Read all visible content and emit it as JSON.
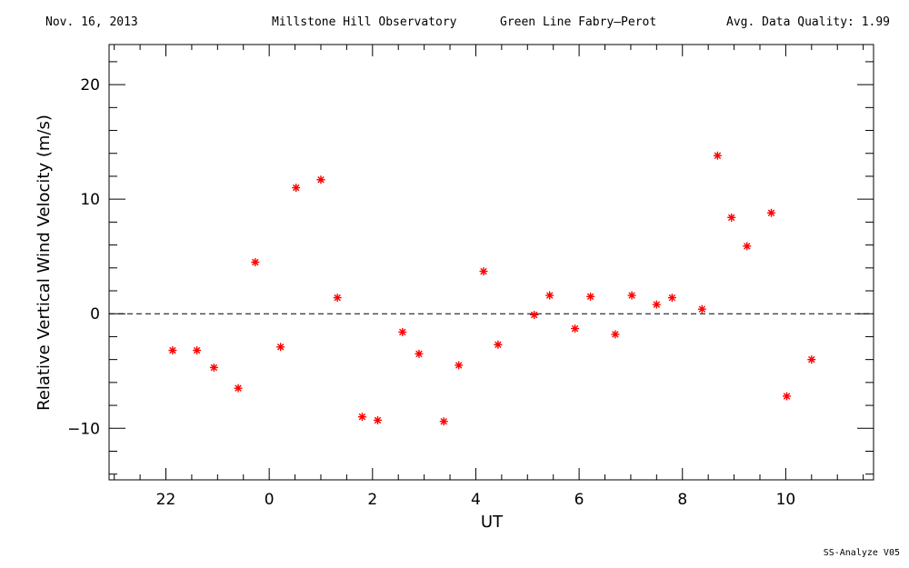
{
  "header": {
    "date": "Nov. 16, 2013",
    "observatory": "Millstone Hill Observatory",
    "instrument": "Green Line Fabry–Perot",
    "quality": "Avg. Data Quality: 1.99"
  },
  "footer": "SS-Analyze V05",
  "chart_data": {
    "type": "scatter",
    "xlabel": "UT",
    "ylabel": "Relative Vertical Wind Velocity (m/s)",
    "xlim": [
      20.9,
      35.7
    ],
    "ylim": [
      -14.5,
      23.5
    ],
    "x_ticks": [
      {
        "value": 22,
        "label": "22"
      },
      {
        "value": 24,
        "label": "0"
      },
      {
        "value": 26,
        "label": "2"
      },
      {
        "value": 28,
        "label": "4"
      },
      {
        "value": 30,
        "label": "6"
      },
      {
        "value": 32,
        "label": "8"
      },
      {
        "value": 34,
        "label": "10"
      }
    ],
    "y_ticks": [
      {
        "value": -10,
        "label": "−10"
      },
      {
        "value": 0,
        "label": "0"
      },
      {
        "value": 10,
        "label": "10"
      },
      {
        "value": 20,
        "label": "20"
      }
    ],
    "reference_line": 0,
    "marker_color": "#ff0000",
    "points": [
      {
        "x": 22.13,
        "y": -3.2
      },
      {
        "x": 22.6,
        "y": -3.2
      },
      {
        "x": 22.93,
        "y": -4.7
      },
      {
        "x": 23.4,
        "y": -6.5
      },
      {
        "x": 23.73,
        "y": 4.5
      },
      {
        "x": 24.22,
        "y": -2.9
      },
      {
        "x": 24.52,
        "y": 11.0
      },
      {
        "x": 25.0,
        "y": 11.7
      },
      {
        "x": 25.32,
        "y": 1.4
      },
      {
        "x": 25.8,
        "y": -9.0
      },
      {
        "x": 26.1,
        "y": -9.3
      },
      {
        "x": 26.58,
        "y": -1.6
      },
      {
        "x": 26.9,
        "y": -3.5
      },
      {
        "x": 27.38,
        "y": -9.4
      },
      {
        "x": 27.67,
        "y": -4.5
      },
      {
        "x": 28.15,
        "y": 3.7
      },
      {
        "x": 28.43,
        "y": -2.7
      },
      {
        "x": 29.13,
        "y": -0.1
      },
      {
        "x": 29.43,
        "y": 1.6
      },
      {
        "x": 29.92,
        "y": -1.3
      },
      {
        "x": 30.22,
        "y": 1.5
      },
      {
        "x": 30.7,
        "y": -1.8
      },
      {
        "x": 31.02,
        "y": 1.6
      },
      {
        "x": 31.5,
        "y": 0.8
      },
      {
        "x": 31.8,
        "y": 1.4
      },
      {
        "x": 32.38,
        "y": 0.4
      },
      {
        "x": 32.68,
        "y": 13.8
      },
      {
        "x": 32.95,
        "y": 8.4
      },
      {
        "x": 33.25,
        "y": 5.9
      },
      {
        "x": 33.72,
        "y": 8.8
      },
      {
        "x": 34.02,
        "y": -7.2
      },
      {
        "x": 34.5,
        "y": -4.0
      }
    ]
  }
}
